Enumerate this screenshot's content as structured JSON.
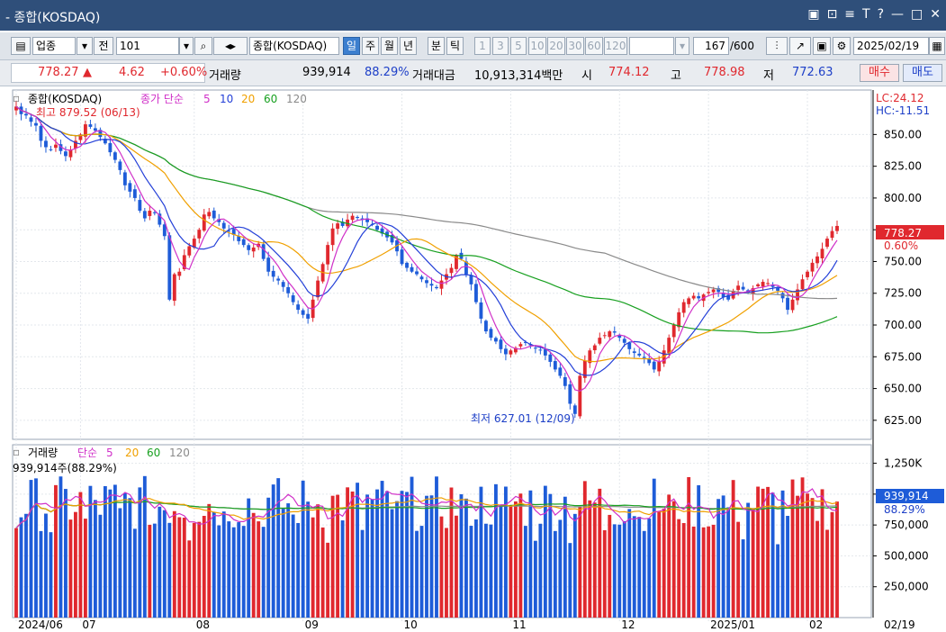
{
  "window": {
    "title": "- 종합(KOSDAQ)",
    "controls": [
      "▣",
      "⊡",
      "≡",
      "T",
      "?",
      "—",
      "□",
      "✕"
    ]
  },
  "toolbar": {
    "market_type": "업종",
    "jeon": "전",
    "code": "101",
    "name": "종합(KOSDAQ)",
    "periods": [
      {
        "label": "일",
        "active": true
      },
      {
        "label": "주",
        "active": false
      },
      {
        "label": "월",
        "active": false
      },
      {
        "label": "년",
        "active": false
      },
      {
        "label": "분",
        "active": false
      },
      {
        "label": "틱",
        "active": false
      }
    ],
    "intervals": [
      "1",
      "3",
      "5",
      "10",
      "20",
      "30",
      "60",
      "120"
    ],
    "count_value": "167",
    "count_total": "/600",
    "date": "2025/02/19"
  },
  "quote": {
    "price": "778.27",
    "arrow": "▲",
    "change": "4.62",
    "change_pct": "+0.60%",
    "volume_label": "거래량",
    "volume": "939,914",
    "volume_pct": "88.29%",
    "amount_label": "거래대금",
    "amount": "10,913,314백만",
    "open_label": "시",
    "open": "774.12",
    "high_label": "고",
    "high": "778.98",
    "low_label": "저",
    "low": "772.63",
    "buy_label": "매수",
    "sell_label": "매도"
  },
  "price_panel": {
    "legend_name": "종합(KOSDAQ)",
    "legend_ma_title": "종가 단순",
    "legend_periods": [
      "5",
      "10",
      "20",
      "60",
      "120"
    ],
    "high_note": "최고 879.52 (06/13)",
    "low_note": "최저 627.01 (12/09)",
    "lc": "LC:24.12",
    "hc": "HC:-11.51",
    "axis_labels": [
      "850.00",
      "825.00",
      "800.00",
      "775.00",
      "750.00",
      "725.00",
      "700.00",
      "675.00",
      "650.00",
      "625.00"
    ],
    "current_price": "778.27",
    "current_pct": "0.60%"
  },
  "volume_panel": {
    "legend_name": "거래량",
    "legend_ma_title": "단순",
    "legend_periods": [
      "5",
      "20",
      "60",
      "120"
    ],
    "info": "939,914주(88.29%)",
    "axis_labels": [
      "1,250K",
      "1,000K",
      "750,000",
      "500,000",
      "250,000"
    ],
    "current_volume": "939,914",
    "current_pct": "88.29%"
  },
  "x_axis": {
    "labels": [
      "2024/06",
      "07",
      "08",
      "09",
      "10",
      "11",
      "12",
      "2025/01",
      "02"
    ],
    "right_label": "02/19"
  },
  "colors": {
    "up": "#e0282e",
    "down": "#1e5cd8",
    "ma5": "#d030c8",
    "ma10": "#2440d8",
    "ma20": "#f0a000",
    "ma60": "#18a020",
    "ma120": "#8a8a8a"
  },
  "chart_data": {
    "type": "candlestick",
    "price_range": [
      610,
      885
    ],
    "volume_range": [
      0,
      1400000
    ],
    "closes": [
      872,
      866,
      865,
      860,
      857,
      845,
      840,
      838,
      842,
      837,
      833,
      838,
      845,
      850,
      858,
      856,
      853,
      848,
      843,
      836,
      830,
      822,
      810,
      805,
      800,
      790,
      784,
      790,
      788,
      779,
      770,
      720,
      740,
      742,
      755,
      762,
      768,
      775,
      787,
      789,
      784,
      781,
      776,
      774,
      771,
      766,
      763,
      759,
      761,
      764,
      752,
      742,
      738,
      735,
      730,
      725,
      718,
      712,
      708,
      705,
      720,
      735,
      748,
      763,
      776,
      780,
      778,
      783,
      786,
      785,
      783,
      781,
      779,
      775,
      772,
      769,
      765,
      758,
      748,
      745,
      742,
      740,
      736,
      733,
      731,
      729,
      735,
      740,
      745,
      755,
      752,
      740,
      732,
      718,
      705,
      695,
      690,
      687,
      681,
      677,
      680,
      682,
      685,
      686,
      684,
      682,
      680,
      676,
      671,
      665,
      660,
      652,
      638,
      630,
      660,
      672,
      680,
      684,
      690,
      692,
      695,
      694,
      690,
      686,
      681,
      678,
      676,
      674,
      670,
      665,
      671,
      680,
      690,
      700,
      710,
      718,
      721,
      723,
      721,
      724,
      726,
      728,
      726,
      722,
      720,
      727,
      731,
      728,
      726,
      729,
      732,
      734,
      733,
      730,
      727,
      721,
      712,
      720,
      728,
      736,
      742,
      749,
      754,
      760,
      768,
      774,
      778
    ]
  }
}
